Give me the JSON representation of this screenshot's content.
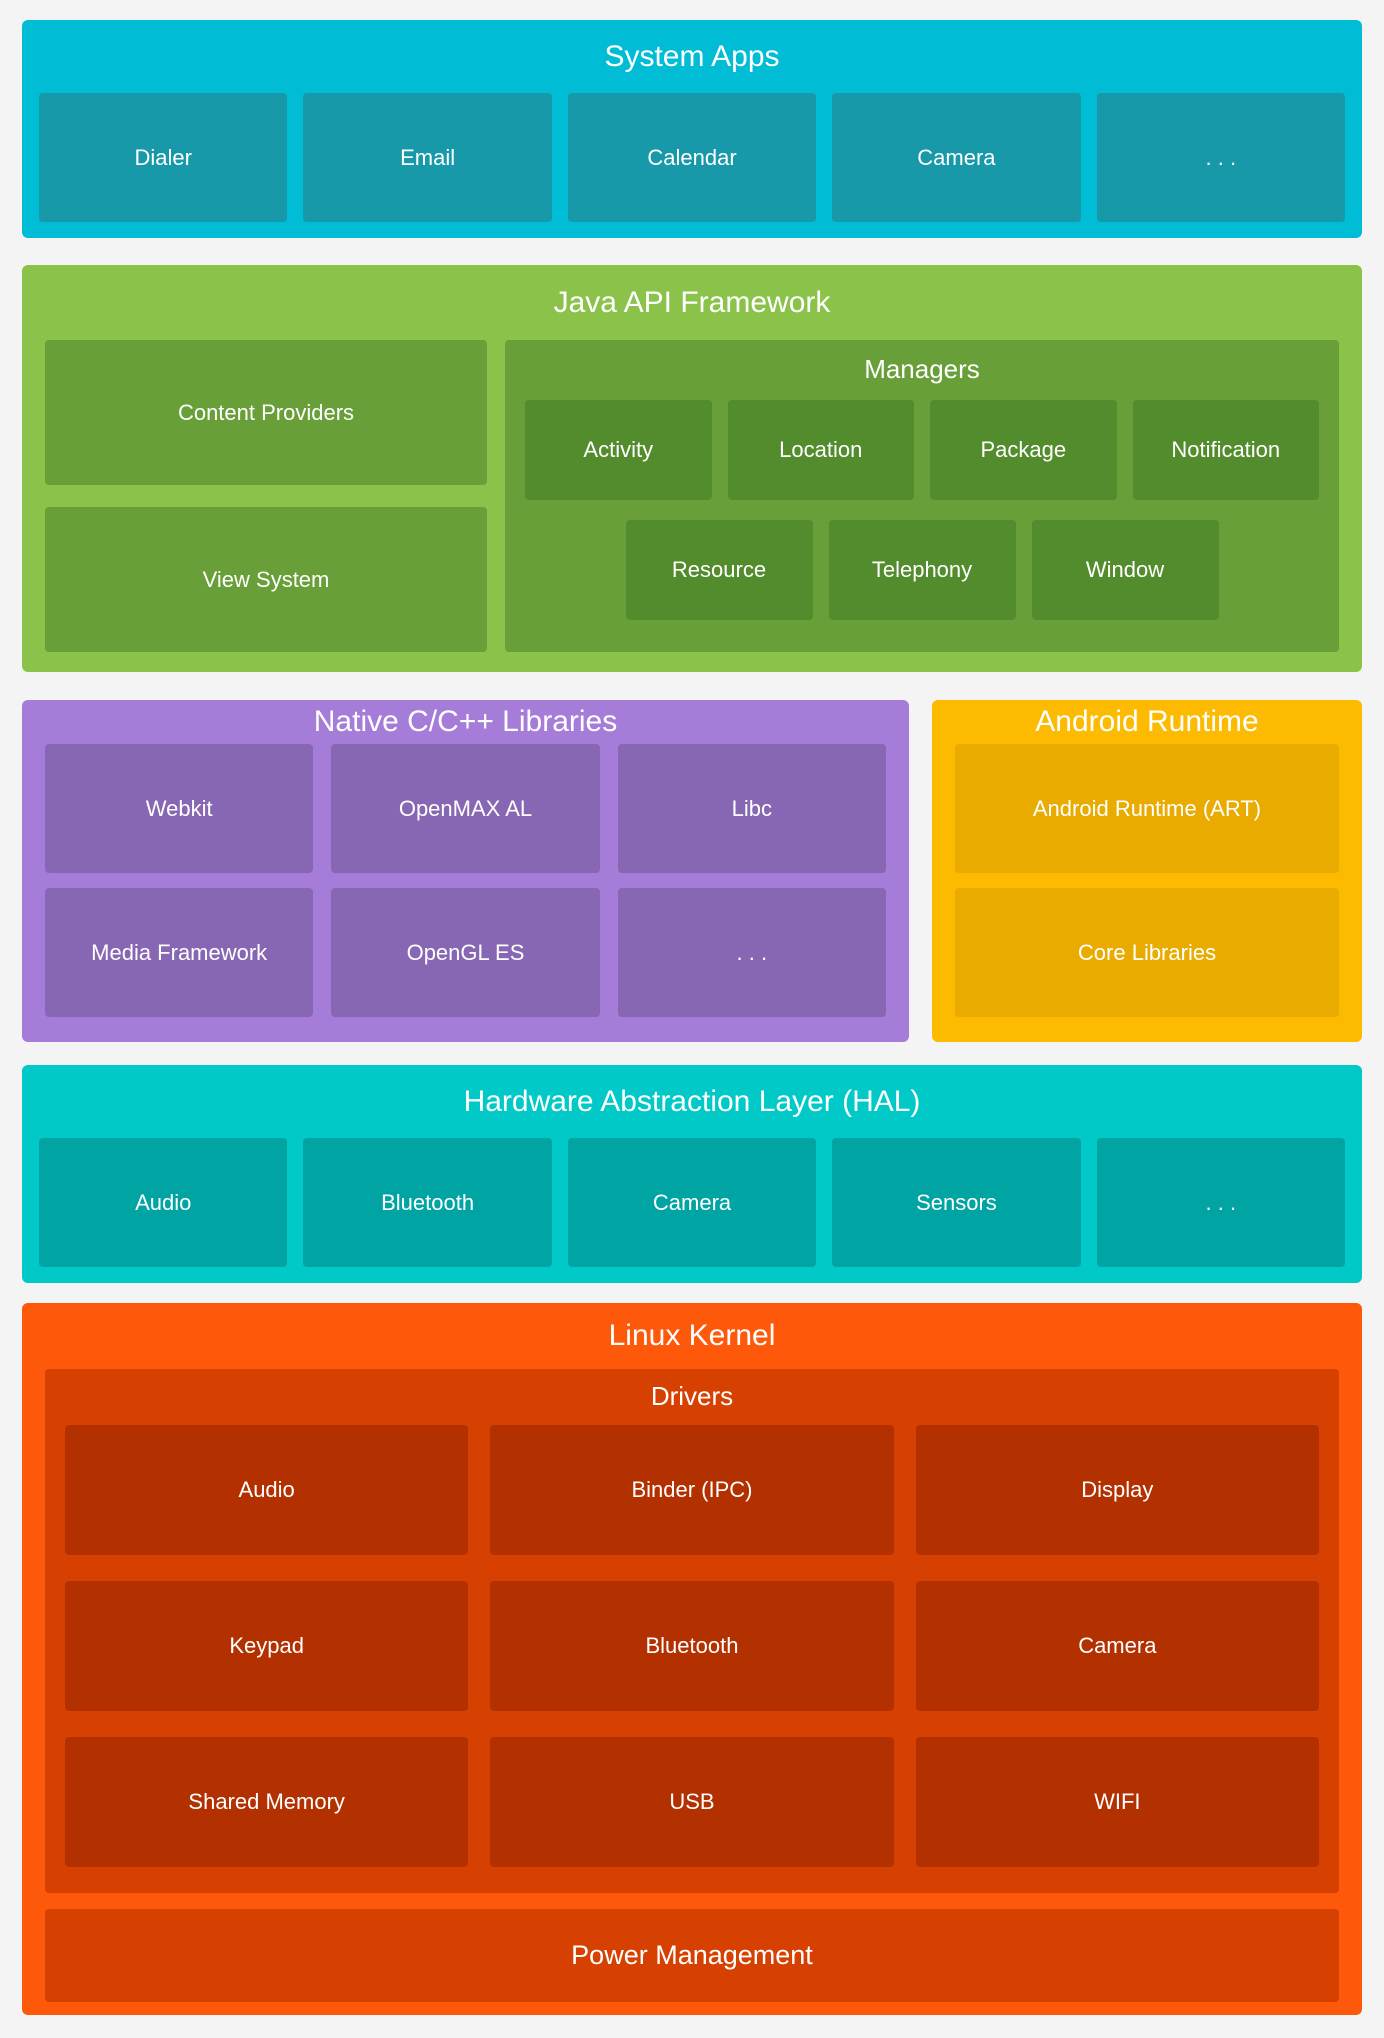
{
  "page": {
    "background_color": "#f3f4f3",
    "text_color": "#ffffff"
  },
  "system_apps": {
    "title": "System Apps",
    "color": "#00bcd4",
    "box_color": "#1799a9",
    "items": [
      "Dialer",
      "Email",
      "Calendar",
      "Camera",
      ". . ."
    ]
  },
  "java_api": {
    "title": "Java API Framework",
    "color": "#8bc34a",
    "box_color": "#689f38",
    "inner_box_color": "#538c2d",
    "left_items": [
      "Content Providers",
      "View System"
    ],
    "managers": {
      "title": "Managers",
      "row1": [
        "Activity",
        "Location",
        "Package",
        "Notification"
      ],
      "row2": [
        "Resource",
        "Telephony",
        "Window"
      ]
    }
  },
  "native_libs": {
    "title": "Native C/C++ Libraries",
    "color": "#a57cd8",
    "box_color": "#8767b3",
    "row1": [
      "Webkit",
      "OpenMAX AL",
      "Libc"
    ],
    "row2": [
      "Media Framework",
      "OpenGL ES",
      ". . ."
    ]
  },
  "android_runtime": {
    "title": "Android Runtime",
    "color": "#fcba00",
    "box_color": "#e9ab00",
    "items": [
      "Android Runtime (ART)",
      "Core Libraries"
    ]
  },
  "hal": {
    "title": "Hardware Abstraction Layer (HAL)",
    "color": "#00c9c8",
    "box_color": "#00a4a3",
    "items": [
      "Audio",
      "Bluetooth",
      "Camera",
      "Sensors",
      ". . ."
    ]
  },
  "linux_kernel": {
    "title": "Linux Kernel",
    "color": "#fe590b",
    "container_color": "#d64000",
    "box_color": "#b33000",
    "drivers": {
      "title": "Drivers",
      "rows": [
        [
          "Audio",
          "Binder (IPC)",
          "Display"
        ],
        [
          "Keypad",
          "Bluetooth",
          "Camera"
        ],
        [
          "Shared Memory",
          "USB",
          "WIFI"
        ]
      ]
    },
    "power_management": "Power Management"
  }
}
